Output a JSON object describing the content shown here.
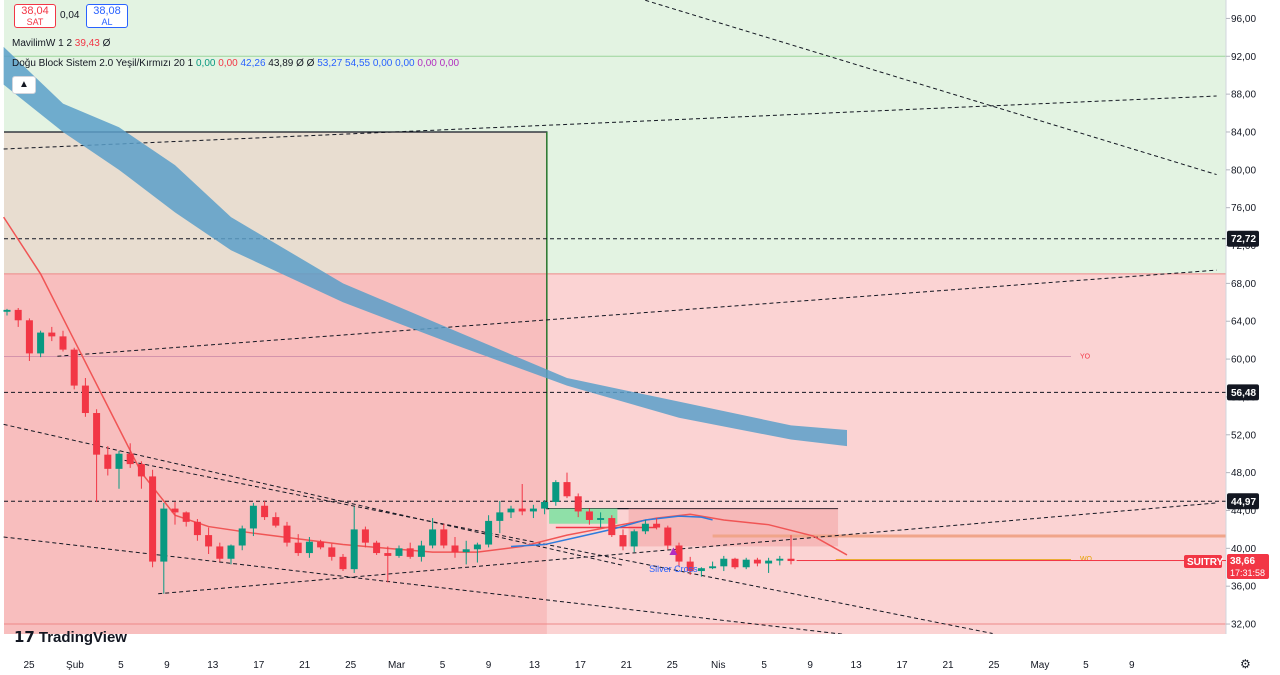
{
  "legend": {
    "sell_price": "38,04",
    "sell_label": "SAT",
    "spread": "0,04",
    "buy_price": "38,08",
    "buy_label": "AL",
    "indicator1_name": "MavilimW 1 2",
    "indicator1_value": "39,43",
    "indicator1_extra": "Ø",
    "indicator2_name": "Doğu Block Sistem 2.0 Yeşil/Kırmızı 20 1",
    "indicator2_values": [
      "0,00",
      "0,00",
      "42,26",
      "43,89",
      "Ø",
      "Ø",
      "53,27",
      "54,55",
      "0,00",
      "0,00",
      "0,00",
      "0,00"
    ],
    "collapse_icon": "chevron-up"
  },
  "branding": {
    "logo_text": "TradingView"
  },
  "colors": {
    "up": "#089981",
    "down": "#f23645",
    "band": "#5b9fc9",
    "zone_red": "#f9bcbc",
    "zone_green": "#e0f2e0",
    "zone_tan": "#e8ddd0"
  },
  "chart_data": {
    "type": "candlestick",
    "symbol": "SUITRY",
    "last_price": "38,66",
    "countdown": "17:31:58",
    "y_range": [
      31,
      98
    ],
    "y_ticks": [
      "32,00",
      "36,00",
      "40,00",
      "44,00",
      "48,00",
      "52,00",
      "56,00",
      "60,00",
      "64,00",
      "68,00",
      "72,00",
      "76,00",
      "80,00",
      "84,00",
      "88,00",
      "92,00",
      "96,00"
    ],
    "price_labels": [
      "72,72",
      "56,48",
      "44,97"
    ],
    "x_ticks": [
      "25",
      "Şub",
      "5",
      "9",
      "13",
      "17",
      "21",
      "25",
      "Mar",
      "5",
      "9",
      "13",
      "17",
      "21",
      "25",
      "Nis",
      "5",
      "9",
      "13",
      "17",
      "21",
      "25",
      "May",
      "5",
      "9"
    ],
    "annotations": [
      {
        "text": "Silver Cross",
        "color": "#2962ff"
      },
      {
        "text": "YO",
        "color": "#f23645"
      },
      {
        "text": "WO",
        "color": "#e5a000"
      }
    ],
    "candles": [
      [
        65.0,
        65.3,
        64.6,
        65.2
      ],
      [
        65.2,
        65.4,
        63.4,
        64.1
      ],
      [
        64.1,
        64.3,
        59.8,
        60.6
      ],
      [
        60.6,
        63.0,
        60.2,
        62.8
      ],
      [
        62.8,
        63.4,
        61.9,
        62.4
      ],
      [
        62.4,
        63.0,
        60.8,
        61.0
      ],
      [
        61.0,
        61.2,
        56.8,
        57.2
      ],
      [
        57.2,
        58.0,
        53.9,
        54.3
      ],
      [
        54.3,
        54.7,
        44.9,
        49.9
      ],
      [
        49.9,
        50.8,
        47.7,
        48.4
      ],
      [
        48.4,
        50.3,
        46.3,
        50.0
      ],
      [
        50.0,
        51.1,
        48.5,
        48.9
      ],
      [
        48.9,
        49.2,
        46.3,
        47.6
      ],
      [
        47.6,
        48.3,
        38.0,
        38.6
      ],
      [
        38.6,
        44.8,
        35.2,
        44.2
      ],
      [
        44.2,
        44.9,
        42.5,
        43.8
      ],
      [
        43.8,
        43.9,
        42.3,
        42.8
      ],
      [
        42.8,
        43.1,
        40.8,
        41.4
      ],
      [
        41.4,
        42.2,
        39.4,
        40.2
      ],
      [
        40.2,
        40.6,
        38.6,
        38.9
      ],
      [
        38.9,
        40.4,
        38.3,
        40.3
      ],
      [
        40.3,
        42.4,
        39.8,
        42.1
      ],
      [
        42.1,
        44.8,
        41.3,
        44.5
      ],
      [
        44.5,
        45.0,
        43.0,
        43.3
      ],
      [
        43.3,
        43.8,
        42.2,
        42.4
      ],
      [
        42.4,
        42.8,
        40.2,
        40.6
      ],
      [
        40.6,
        41.5,
        39.2,
        39.5
      ],
      [
        39.5,
        41.2,
        39.0,
        40.7
      ],
      [
        40.7,
        40.9,
        39.9,
        40.1
      ],
      [
        40.1,
        40.5,
        38.7,
        39.1
      ],
      [
        39.1,
        39.4,
        37.6,
        37.8
      ],
      [
        37.8,
        44.4,
        37.4,
        42.0
      ],
      [
        42.0,
        42.3,
        40.1,
        40.6
      ],
      [
        40.6,
        40.8,
        39.3,
        39.5
      ],
      [
        39.5,
        40.2,
        36.4,
        39.2
      ],
      [
        39.2,
        40.3,
        39.0,
        40.0
      ],
      [
        40.0,
        40.6,
        38.9,
        39.1
      ],
      [
        39.1,
        40.8,
        38.6,
        40.3
      ],
      [
        40.3,
        43.2,
        40.0,
        42.0
      ],
      [
        42.0,
        42.6,
        40.0,
        40.3
      ],
      [
        40.3,
        41.2,
        39.0,
        39.6
      ],
      [
        39.6,
        40.8,
        38.3,
        39.9
      ],
      [
        39.9,
        40.6,
        38.5,
        40.4
      ],
      [
        40.4,
        43.5,
        40.1,
        42.9
      ],
      [
        42.9,
        45.0,
        41.6,
        43.8
      ],
      [
        43.8,
        44.5,
        43.2,
        44.2
      ],
      [
        44.2,
        46.8,
        43.5,
        43.9
      ],
      [
        43.9,
        44.6,
        43.2,
        44.2
      ],
      [
        44.2,
        45.1,
        43.6,
        44.9
      ],
      [
        44.9,
        47.2,
        44.5,
        47.0
      ],
      [
        47.0,
        48.0,
        45.3,
        45.5
      ],
      [
        45.5,
        45.8,
        43.3,
        43.9
      ],
      [
        43.9,
        44.2,
        42.5,
        43.0
      ],
      [
        43.0,
        43.8,
        42.2,
        43.2
      ],
      [
        43.2,
        43.5,
        41.2,
        41.4
      ],
      [
        41.4,
        42.0,
        39.8,
        40.2
      ],
      [
        40.2,
        42.0,
        39.6,
        41.8
      ],
      [
        41.8,
        43.0,
        41.5,
        42.6
      ],
      [
        42.6,
        43.2,
        42.0,
        42.2
      ],
      [
        42.2,
        42.4,
        39.9,
        40.3
      ],
      [
        40.3,
        40.6,
        38.1,
        38.6
      ],
      [
        38.6,
        39.1,
        37.2,
        37.6
      ],
      [
        37.6,
        38.0,
        37.0,
        37.9
      ],
      [
        37.9,
        38.6,
        37.8,
        38.1
      ],
      [
        38.1,
        39.2,
        37.6,
        38.9
      ],
      [
        38.9,
        39.0,
        37.8,
        38.0
      ],
      [
        38.0,
        39.0,
        37.8,
        38.8
      ],
      [
        38.8,
        39.0,
        38.1,
        38.4
      ],
      [
        38.4,
        39.0,
        37.4,
        38.7
      ],
      [
        38.7,
        39.2,
        38.2,
        38.9
      ],
      [
        38.9,
        41.4,
        38.3,
        38.66
      ]
    ]
  }
}
